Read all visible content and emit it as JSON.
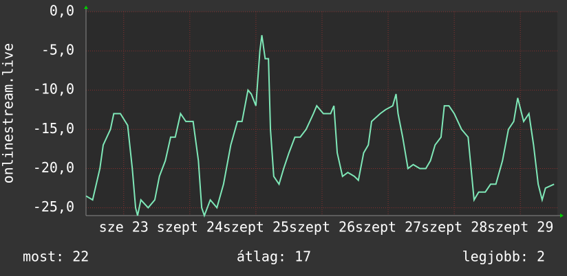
{
  "chart_data": {
    "type": "line",
    "ylabel": "onlinestream.live",
    "x": [
      22.43,
      22.53,
      22.64,
      22.69,
      22.8,
      22.85,
      22.95,
      23.06,
      23.13,
      23.18,
      23.21,
      23.26,
      23.37,
      23.47,
      23.54,
      23.63,
      23.71,
      23.78,
      23.86,
      23.94,
      24.05,
      24.13,
      24.18,
      24.22,
      24.31,
      24.41,
      24.51,
      24.62,
      24.72,
      24.79,
      24.88,
      24.93,
      25.0,
      25.06,
      25.09,
      25.14,
      25.19,
      25.22,
      25.27,
      25.35,
      25.42,
      25.5,
      25.59,
      25.67,
      25.76,
      25.87,
      25.92,
      26.02,
      26.13,
      26.18,
      26.23,
      26.31,
      26.39,
      26.49,
      26.55,
      26.63,
      26.7,
      26.75,
      26.88,
      26.96,
      27.07,
      27.12,
      27.15,
      27.22,
      27.3,
      27.38,
      27.48,
      27.57,
      27.64,
      27.71,
      27.8,
      27.85,
      27.92,
      28.0,
      28.11,
      28.21,
      28.3,
      28.37,
      28.47,
      28.55,
      28.63,
      28.73,
      28.82,
      28.9,
      28.96,
      29.05,
      29.13,
      29.2,
      29.27,
      29.33,
      29.38,
      29.51
    ],
    "series": [
      {
        "color": "#7fe8b8",
        "values": [
          -23.5,
          -24,
          -20,
          -17,
          -15,
          -13,
          -13,
          -14.5,
          -20,
          -25,
          -26,
          -24,
          -25,
          -24,
          -21,
          -19,
          -16,
          -16,
          -13,
          -14,
          -14,
          -19,
          -25,
          -26,
          -24,
          -25,
          -22,
          -17,
          -14,
          -14,
          -10,
          -10.5,
          -12,
          -5,
          -3,
          -6,
          -6,
          -15,
          -21,
          -22,
          -20,
          -18,
          -16,
          -16,
          -15,
          -13,
          -12,
          -13,
          -13,
          -12,
          -18,
          -21,
          -20.5,
          -21,
          -21.5,
          -18,
          -17,
          -14,
          -13,
          -12.5,
          -12,
          -10.5,
          -13,
          -16,
          -20,
          -19.5,
          -20,
          -20,
          -19,
          -17,
          -16,
          -12,
          -12,
          -13,
          -15,
          -16,
          -24,
          -23,
          -23,
          -22,
          -22,
          -19,
          -15,
          -14,
          -11,
          -14,
          -13,
          -17,
          -22,
          -24,
          -22.5,
          -22
        ]
      }
    ],
    "xlim": [
      22.43,
      29.56
    ],
    "xticks": [
      {
        "value": 23,
        "label": "sze 23"
      },
      {
        "value": 24,
        "label": "szept 24"
      },
      {
        "value": 25,
        "label": "szept 25"
      },
      {
        "value": 26,
        "label": "szept 26"
      },
      {
        "value": 27,
        "label": "szept 27"
      },
      {
        "value": 28,
        "label": "szept 28"
      },
      {
        "value": 29,
        "label": "szept 29"
      }
    ],
    "ylim": [
      -26,
      0
    ],
    "yticks": [
      {
        "value": 0,
        "label": "0,0"
      },
      {
        "value": -5,
        "label": "-5,0"
      },
      {
        "value": -10,
        "label": "-10,0"
      },
      {
        "value": -15,
        "label": "-15,0"
      },
      {
        "value": -20,
        "label": "-20,0"
      },
      {
        "value": -25,
        "label": "-25,0"
      }
    ],
    "grid": true,
    "stats": [
      "most: 22",
      "átlag: 17",
      "legjobb: 2"
    ]
  }
}
